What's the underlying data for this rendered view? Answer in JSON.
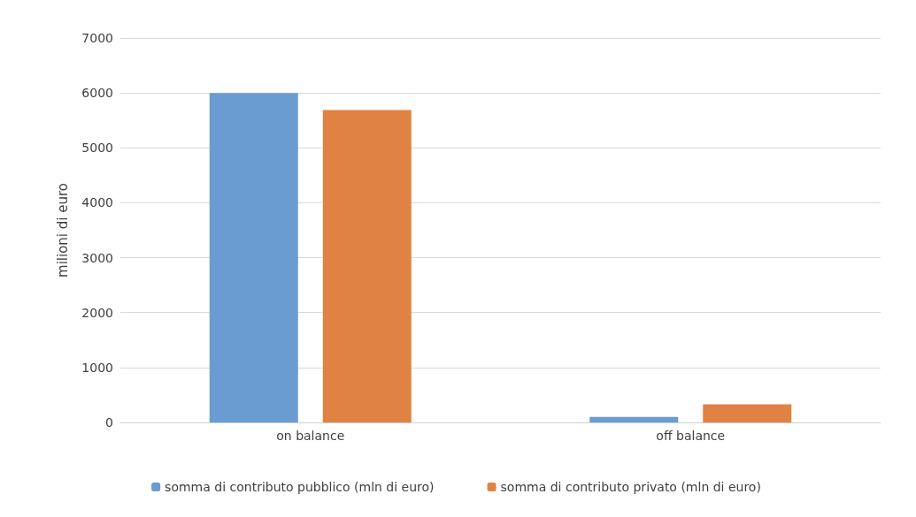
{
  "chart_data": {
    "type": "bar",
    "ylabel": "milioni di euro",
    "categories": [
      "on balance",
      "off balance"
    ],
    "series": [
      {
        "name": "somma di contributo pubblico (mln di euro)",
        "color": "#6a9bd1",
        "values": [
          6000,
          100
        ]
      },
      {
        "name": "somma di contributo privato (mln di euro)",
        "color": "#e08243",
        "values": [
          5690,
          330
        ]
      }
    ],
    "ylim": [
      0,
      7000
    ],
    "yticks": [
      0,
      1000,
      2000,
      3000,
      4000,
      5000,
      6000,
      7000
    ],
    "grid": "y",
    "legend": "bottom"
  }
}
